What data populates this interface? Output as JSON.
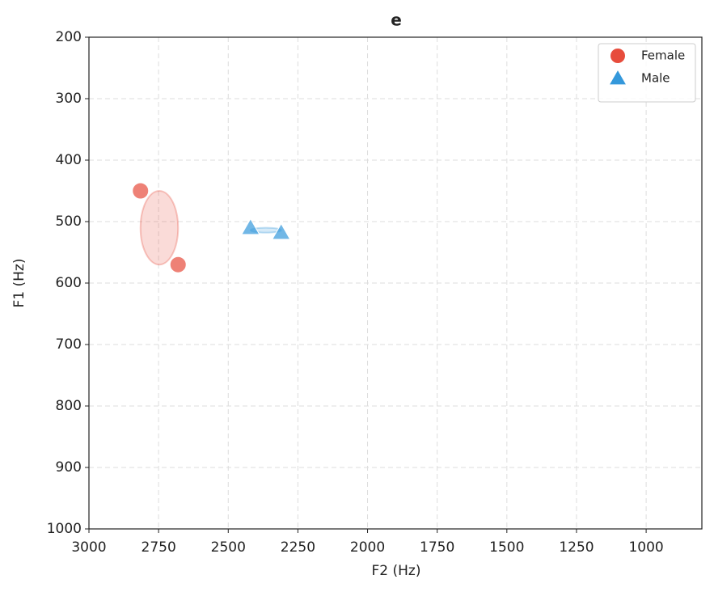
{
  "chart_data": {
    "type": "scatter",
    "title": "e",
    "x_label": "F2 (Hz)",
    "y_label": "F1 (Hz)",
    "xlim": [
      3000,
      800
    ],
    "ylim": [
      1000,
      200
    ],
    "xticks": [
      3000,
      2750,
      2500,
      2250,
      2000,
      1750,
      1500,
      1250,
      1000
    ],
    "yticks": [
      200,
      300,
      400,
      500,
      600,
      700,
      800,
      900,
      1000
    ],
    "grid": true,
    "legend": "upper right",
    "ellipses": true,
    "series": [
      {
        "name": "Female",
        "color": "#e74c3c",
        "marker": "circle",
        "x": [
          2815,
          2680
        ],
        "values": [
          450,
          570
        ]
      },
      {
        "name": "Male",
        "color": "#3498db",
        "marker": "triangle",
        "x": [
          2420,
          2310
        ],
        "values": [
          510,
          518
        ]
      }
    ]
  }
}
